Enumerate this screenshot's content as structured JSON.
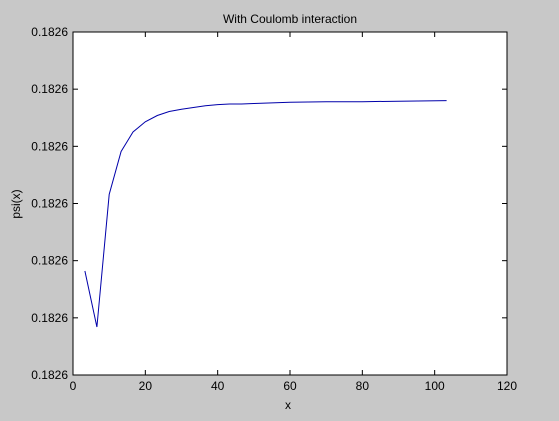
{
  "figure": {
    "background": "#c8c8c8",
    "axes_background": "#ffffff",
    "line_color": "#0000aa"
  },
  "chart_data": {
    "type": "line",
    "title": "With Coulomb interaction",
    "xlabel": "x",
    "ylabel": "psi(x)",
    "xlim": [
      0,
      120
    ],
    "xticks": [
      "0",
      "20",
      "40",
      "60",
      "80",
      "100",
      "120"
    ],
    "yticks": [
      "0.1826",
      "0.1826",
      "0.1826",
      "0.1826",
      "0.1826",
      "0.1826",
      "0.1826"
    ],
    "grid": false,
    "legend": "none",
    "series": [
      {
        "x": [
          3.3,
          6.6,
          10,
          13.3,
          16.6,
          20,
          23.3,
          26.6,
          30,
          33.3,
          36.6,
          40,
          43.3,
          46.6,
          50,
          60,
          70,
          80,
          90,
          103.3
        ],
        "y": [
          1.82,
          0.84,
          3.16,
          3.91,
          4.25,
          4.43,
          4.54,
          4.61,
          4.65,
          4.68,
          4.71,
          4.73,
          4.74,
          4.74,
          4.75,
          4.77,
          4.78,
          4.78,
          4.79,
          4.8
        ]
      }
    ]
  }
}
